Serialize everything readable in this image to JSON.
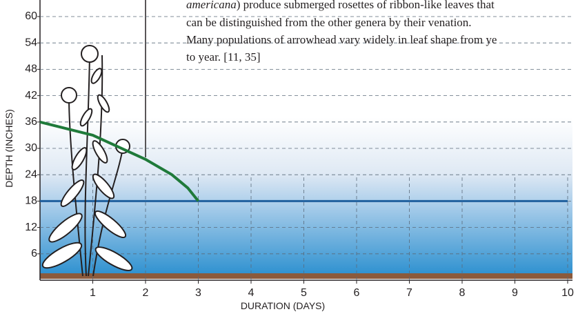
{
  "text": {
    "lines": [
      {
        "italic": "americana",
        "rest": ") produce submerged rosettes of ribbon-like leaves that"
      },
      "can be distinguished from the other genera by their venation.",
      "Many populations of arrowhead vary widely in leaf shape from ye",
      "to year. [11, 35]"
    ]
  },
  "chart_data": {
    "type": "line",
    "xlabel": "DURATION (DAYS)",
    "ylabel": "DEPTH (INCHES)",
    "xlim": [
      0,
      10
    ],
    "ylim": [
      0,
      60
    ],
    "xticks": [
      1,
      2,
      3,
      4,
      5,
      6,
      7,
      8,
      9,
      10
    ],
    "yticks": [
      6,
      12,
      18,
      24,
      30,
      36,
      42,
      48,
      54,
      60
    ],
    "grid": true,
    "series": [
      {
        "color": "#1f7a3a",
        "x": [
          0,
          1,
          2,
          2.5,
          2.8,
          3
        ],
        "values": [
          36,
          33,
          27.5,
          24,
          21,
          18
        ]
      },
      {
        "color": "#1f5f9e",
        "x": [
          0,
          10
        ],
        "values": [
          18,
          18
        ]
      }
    ]
  }
}
